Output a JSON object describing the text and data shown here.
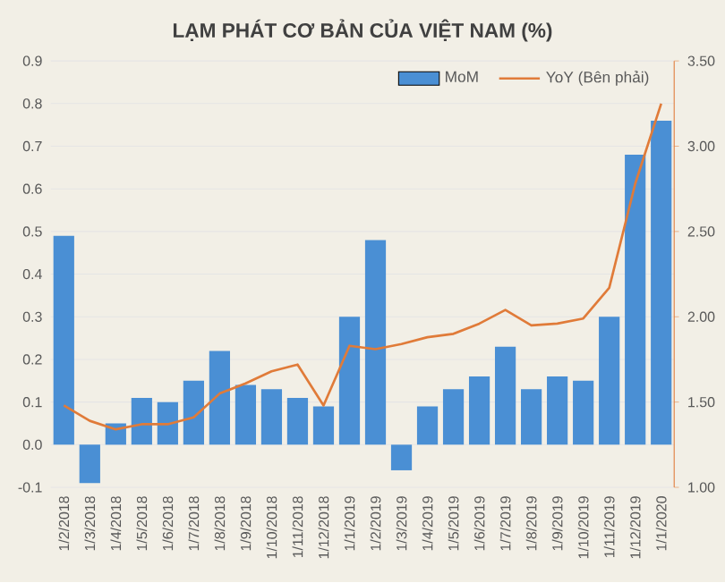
{
  "chart_data": {
    "type": "bar",
    "title": "LẠM PHÁT CƠ BẢN CỦA VIỆT NAM (%)",
    "categories": [
      "1/2/2018",
      "1/3/2018",
      "1/4/2018",
      "1/5/2018",
      "1/6/2018",
      "1/7/2018",
      "1/8/2018",
      "1/9/2018",
      "1/10/2018",
      "1/11/2018",
      "1/12/2018",
      "1/1/2019",
      "1/2/2019",
      "1/3/2019",
      "1/4/2019",
      "1/5/2019",
      "1/6/2019",
      "1/7/2019",
      "1/8/2019",
      "1/9/2019",
      "1/10/2019",
      "1/11/2019",
      "1/12/2019",
      "1/1/2020"
    ],
    "series": [
      {
        "name": "MoM",
        "color": "#4a8fd4",
        "values": [
          0.49,
          -0.09,
          0.05,
          0.11,
          0.1,
          0.15,
          0.22,
          0.14,
          0.13,
          0.11,
          0.09,
          0.3,
          0.48,
          -0.06,
          0.09,
          0.13,
          0.16,
          0.23,
          0.13,
          0.16,
          0.15,
          0.3,
          0.68,
          0.76
        ]
      },
      {
        "name": "YoY (Bên phải)",
        "type": "line",
        "axis": "y2",
        "color": "#e07b39",
        "values": [
          1.48,
          1.39,
          1.34,
          1.37,
          1.37,
          1.41,
          1.55,
          1.61,
          1.68,
          1.72,
          1.48,
          1.83,
          1.81,
          1.84,
          1.88,
          1.9,
          1.96,
          2.04,
          1.95,
          1.96,
          1.99,
          2.17,
          2.78,
          3.25
        ]
      }
    ],
    "ylim": [
      -0.1,
      0.9
    ],
    "yticks": [
      -0.1,
      {
        "value": 0,
        "label": "0.0"
      },
      0.1,
      0.2,
      0.3,
      0.4,
      0.5,
      0.6,
      0.7,
      0.8,
      0.9
    ],
    "y2lim": [
      1.0,
      3.5
    ],
    "y2ticks": [
      {
        "value": 1.0,
        "label": "1.00"
      },
      {
        "value": 1.5,
        "label": "1.50"
      },
      {
        "value": 2.0,
        "label": "2.00"
      },
      {
        "value": 2.5,
        "label": "2.50"
      },
      {
        "value": 3.0,
        "label": "3.00"
      },
      {
        "value": 3.5,
        "label": "3.50"
      }
    ],
    "grid": "y",
    "legend": "top right"
  }
}
